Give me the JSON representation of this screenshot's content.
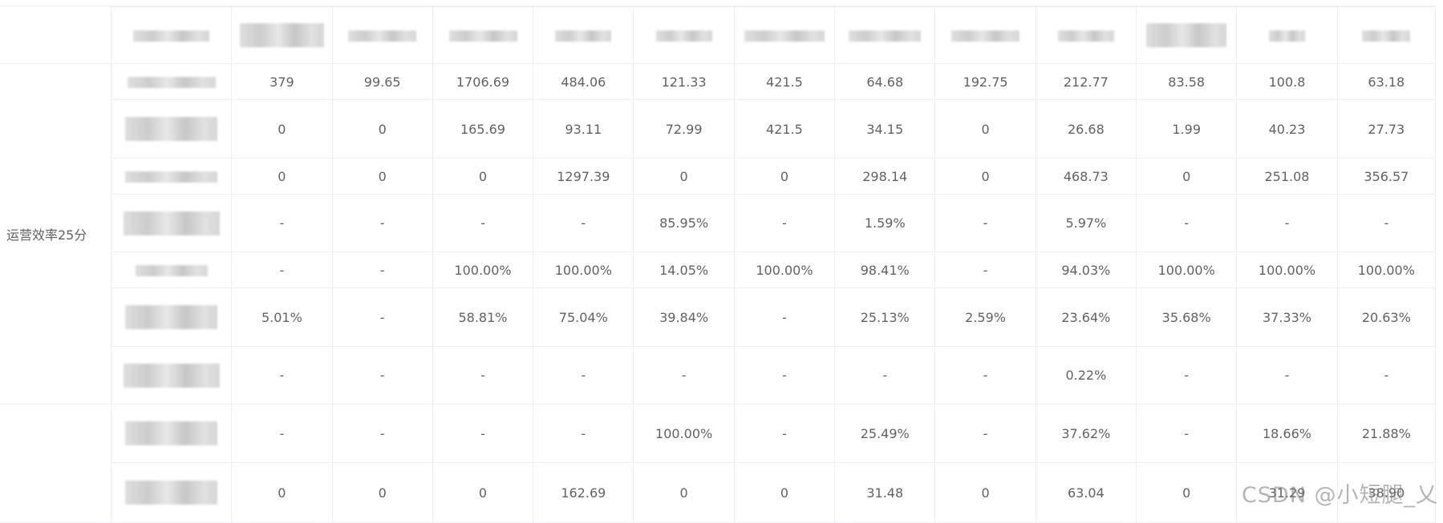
{
  "group_label": "运营效率25分",
  "rows": [
    [
      "379",
      "99.65",
      "1706.69",
      "484.06",
      "121.33",
      "421.5",
      "64.68",
      "192.75",
      "212.77",
      "83.58",
      "100.8",
      "63.18"
    ],
    [
      "0",
      "0",
      "165.69",
      "93.11",
      "72.99",
      "421.5",
      "34.15",
      "0",
      "26.68",
      "1.99",
      "40.23",
      "27.73"
    ],
    [
      "0",
      "0",
      "0",
      "1297.39",
      "0",
      "0",
      "298.14",
      "0",
      "468.73",
      "0",
      "251.08",
      "356.57"
    ],
    [
      "-",
      "-",
      "-",
      "-",
      "85.95%",
      "-",
      "1.59%",
      "-",
      "5.97%",
      "-",
      "-",
      "-"
    ],
    [
      "-",
      "-",
      "100.00%",
      "100.00%",
      "14.05%",
      "100.00%",
      "98.41%",
      "-",
      "94.03%",
      "100.00%",
      "100.00%",
      "100.00%"
    ],
    [
      "5.01%",
      "-",
      "58.81%",
      "75.04%",
      "39.84%",
      "-",
      "25.13%",
      "2.59%",
      "23.64%",
      "35.68%",
      "37.33%",
      "20.63%"
    ],
    [
      "-",
      "-",
      "-",
      "-",
      "-",
      "-",
      "-",
      "-",
      "0.22%",
      "-",
      "-",
      "-"
    ],
    [
      "-",
      "-",
      "-",
      "-",
      "100.00%",
      "-",
      "25.49%",
      "-",
      "37.62%",
      "-",
      "18.66%",
      "21.88%"
    ],
    [
      "0",
      "0",
      "0",
      "162.69",
      "0",
      "0",
      "31.48",
      "0",
      "63.04",
      "0",
      "31.29",
      "38.90"
    ]
  ],
  "watermark": "CSDN @小短腿_乂"
}
